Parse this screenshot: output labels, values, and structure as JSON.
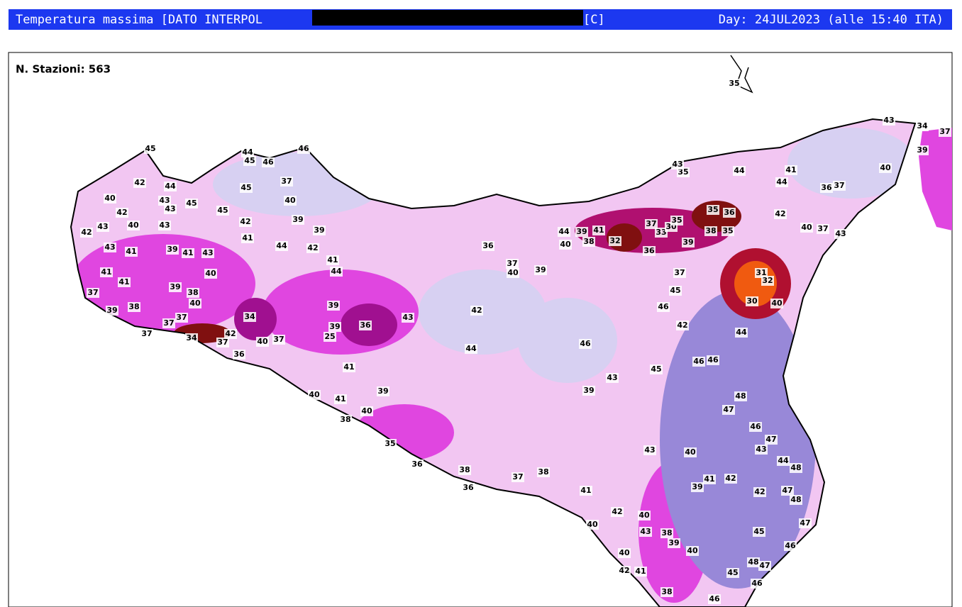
{
  "header": {
    "title_left": "Temperatura massima [DATO INTERPOL",
    "title_right": "[C]",
    "day": "Day: 24JUL2023 (alle 15:40 ITA)"
  },
  "map": {
    "stations_label": "N. Stazioni: 563",
    "values": [
      45,
      42,
      44,
      40,
      43,
      43,
      45,
      42,
      40,
      43,
      42,
      43,
      43,
      41,
      39,
      41,
      43,
      41,
      41,
      40,
      37,
      39,
      38,
      40,
      39,
      38,
      37,
      37,
      34,
      37,
      42,
      37,
      36,
      44,
      46,
      45,
      46,
      37,
      40,
      45,
      45,
      42,
      41,
      44,
      39,
      39,
      42,
      41,
      44,
      34,
      39,
      36,
      39,
      25,
      40,
      37,
      41,
      40,
      41,
      38,
      40,
      39,
      35,
      36,
      38,
      36,
      37,
      38,
      41,
      40,
      36,
      40,
      37,
      39,
      43,
      42,
      44,
      46,
      39,
      43,
      45,
      46,
      46,
      48,
      47,
      46,
      47,
      43,
      44,
      48,
      47,
      48,
      47,
      46,
      45,
      48,
      47,
      46,
      45,
      32,
      33,
      30,
      37,
      35,
      35,
      36,
      38,
      35,
      31,
      32,
      30,
      40,
      36,
      37,
      39,
      45,
      46,
      42,
      44,
      43,
      34,
      37,
      39,
      41,
      44,
      36,
      37,
      40,
      42,
      40,
      37,
      43,
      35,
      43,
      44,
      35,
      40,
      38,
      44,
      39,
      41,
      43,
      38,
      39,
      40,
      42,
      41,
      38,
      46,
      40,
      42,
      40,
      43,
      39,
      40,
      41,
      42,
      42
    ]
  }
}
